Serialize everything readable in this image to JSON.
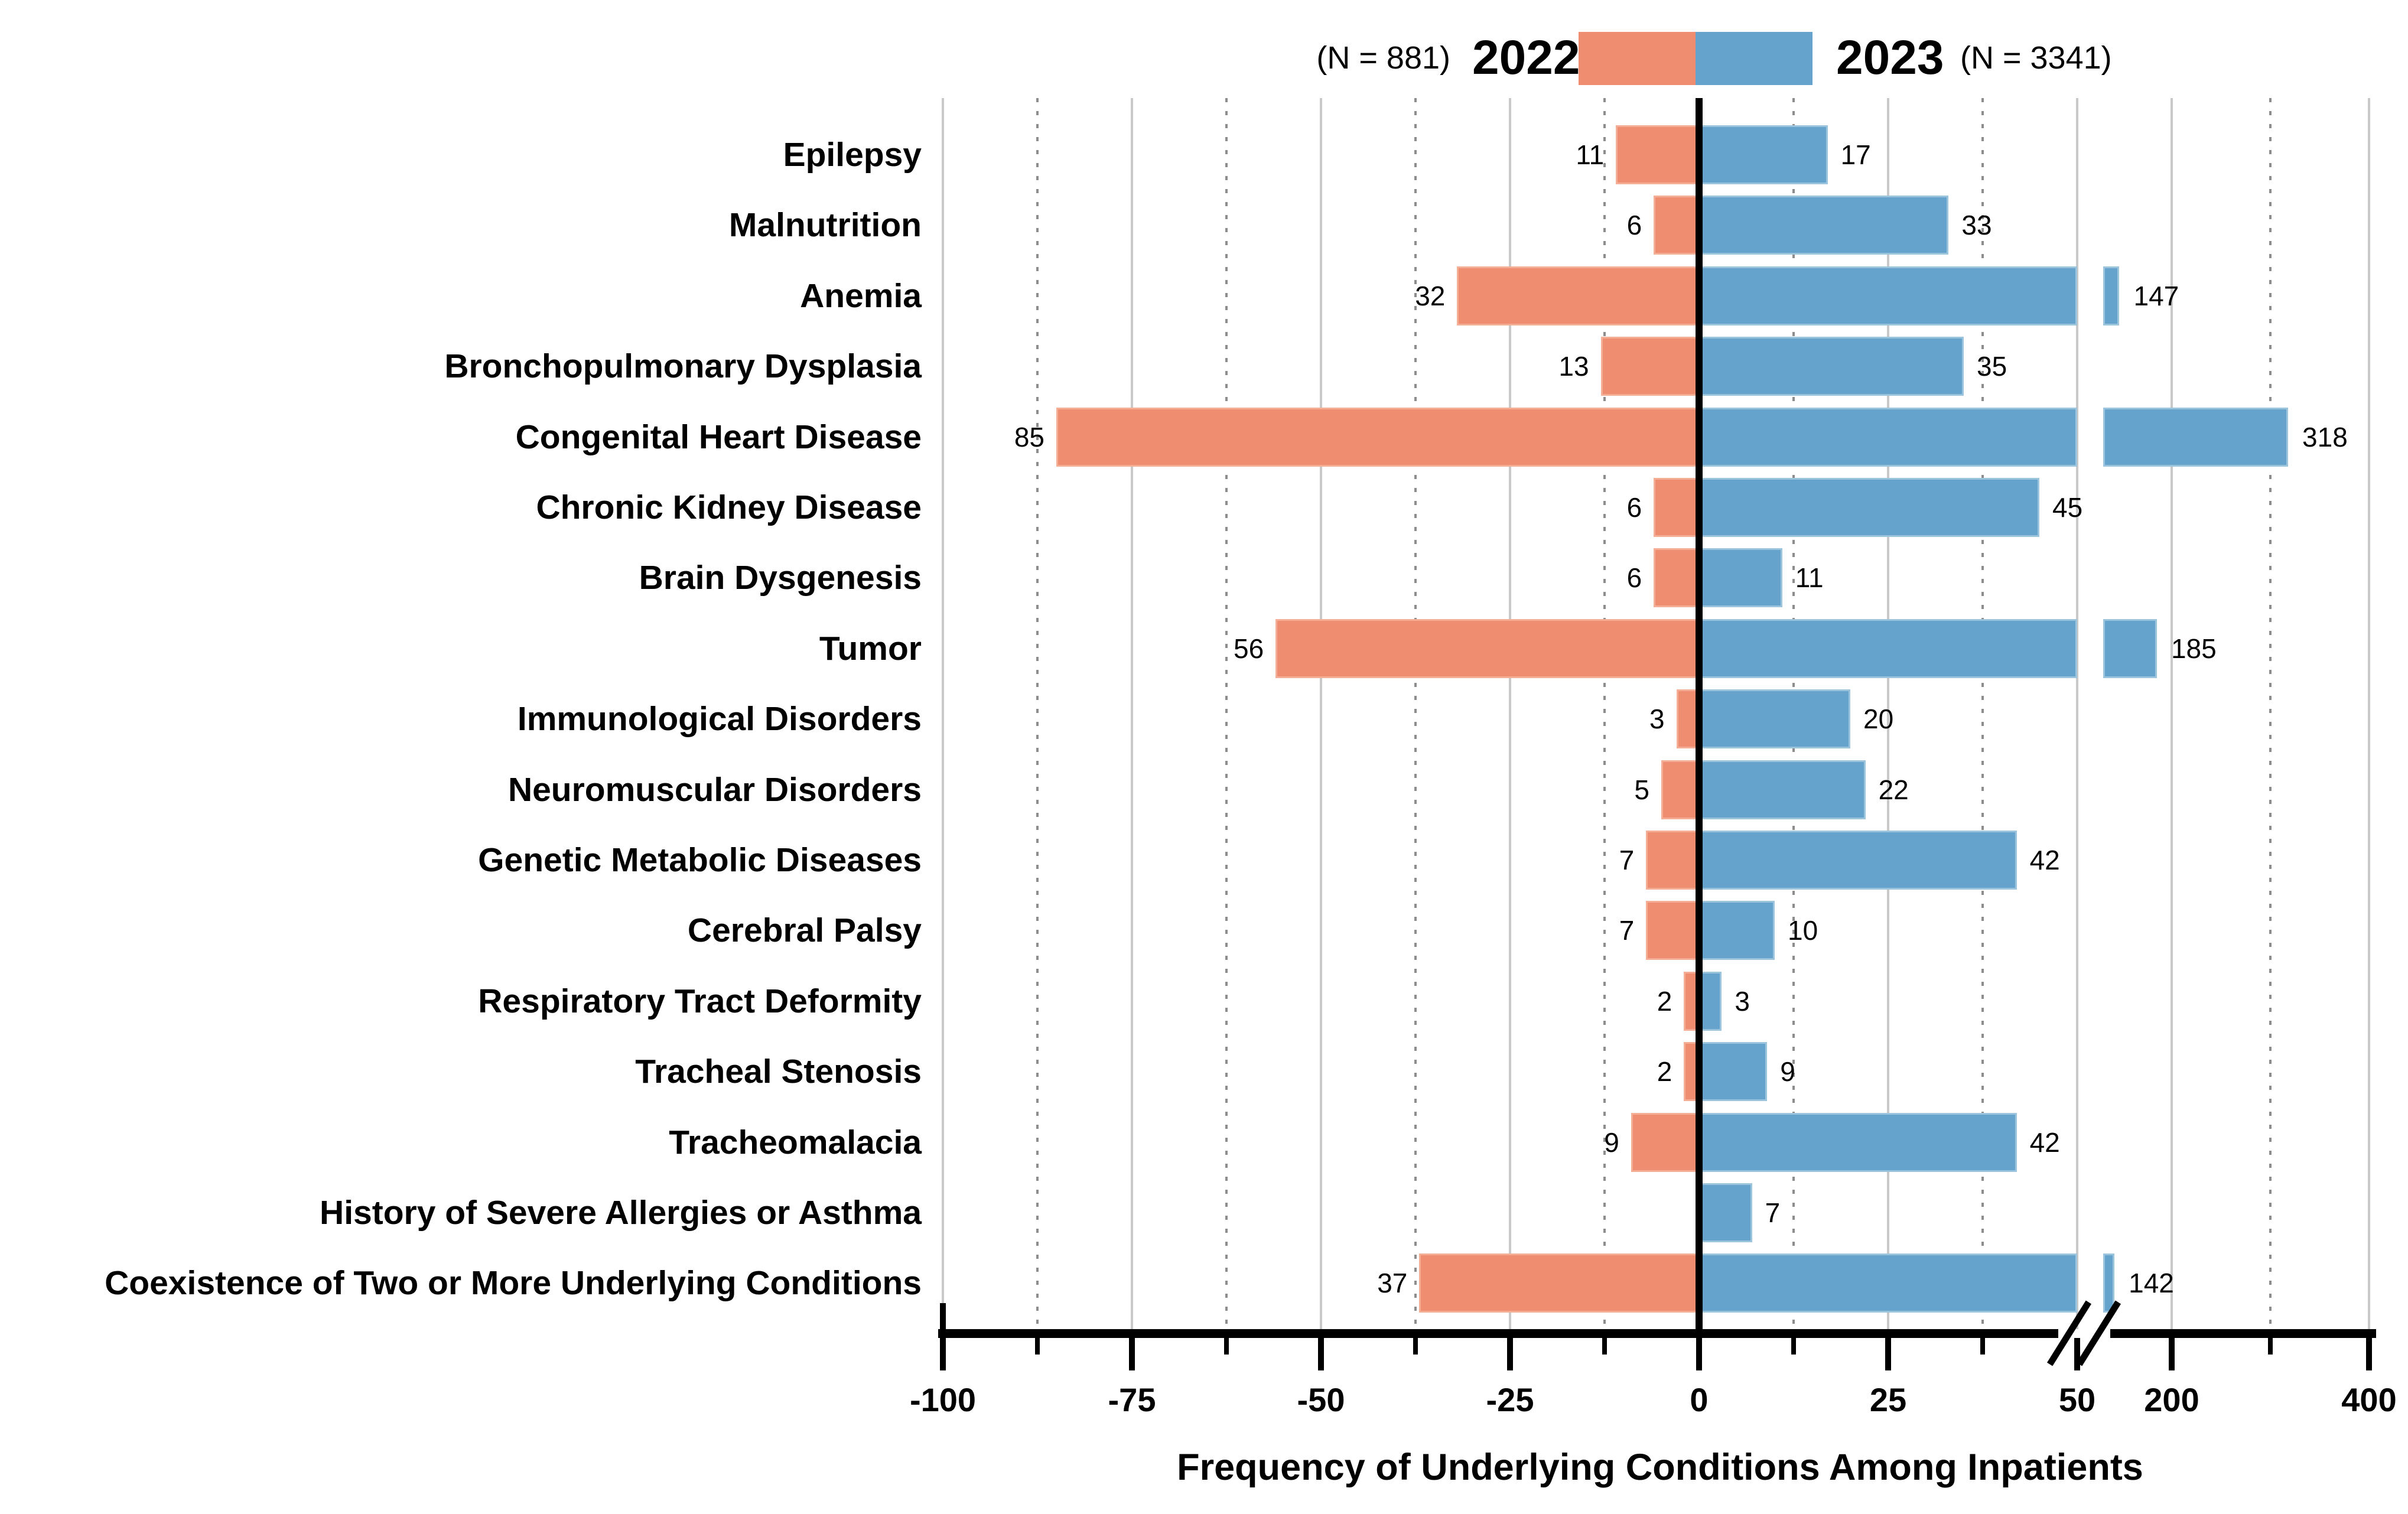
{
  "legend": {
    "left_count": "(N = 881)",
    "left_year": "2022",
    "right_year": "2023",
    "right_count": "(N = 3341)"
  },
  "axis": {
    "title": "Frequency of Underlying Conditions Among Inpatients"
  },
  "colors": {
    "bar_2022": "#EF8D70",
    "bar_2023": "#66A3CC",
    "grid_major": "#c9c9c9",
    "grid_minor": "#8d8d8d",
    "zero_line": "#000000"
  },
  "chart_data": {
    "type": "bar",
    "variant": "diverging-horizontal",
    "title": "",
    "xlabel": "Frequency of Underlying Conditions Among Inpatients",
    "ylabel": "",
    "legend_position": "top-center",
    "grid": "vertical major solid, minor dotted",
    "axis_break": {
      "after": 50,
      "resume_at": 200
    },
    "x_major_ticks": [
      -100,
      -75,
      -50,
      -25,
      0,
      25,
      50,
      200,
      400
    ],
    "x_minor_ticks": [
      -87.5,
      -62.5,
      -37.5,
      -12.5,
      12.5,
      37.5,
      300
    ],
    "categories": [
      "Epilepsy",
      "Malnutrition",
      "Anemia",
      "Bronchopulmonary Dysplasia",
      "Congenital Heart Disease",
      "Chronic Kidney Disease",
      "Brain Dysgenesis",
      "Tumor",
      "Immunological Disorders",
      "Neuromuscular Disorders",
      "Genetic Metabolic Diseases",
      "Cerebral Palsy",
      "Respiratory Tract Deformity",
      "Tracheal Stenosis",
      "Tracheomalacia",
      "History of Severe Allergies or Asthma",
      "Coexistence of Two or More Underlying Conditions"
    ],
    "series": [
      {
        "name": "2022",
        "n": 881,
        "side": "left",
        "color": "#EF8D70",
        "values": [
          11,
          6,
          32,
          13,
          85,
          6,
          6,
          56,
          3,
          5,
          7,
          7,
          2,
          2,
          9,
          null,
          37
        ]
      },
      {
        "name": "2023",
        "n": 3341,
        "side": "right",
        "color": "#66A3CC",
        "values": [
          17,
          33,
          147,
          35,
          318,
          45,
          11,
          185,
          20,
          22,
          42,
          10,
          3,
          9,
          42,
          7,
          142
        ]
      }
    ]
  }
}
